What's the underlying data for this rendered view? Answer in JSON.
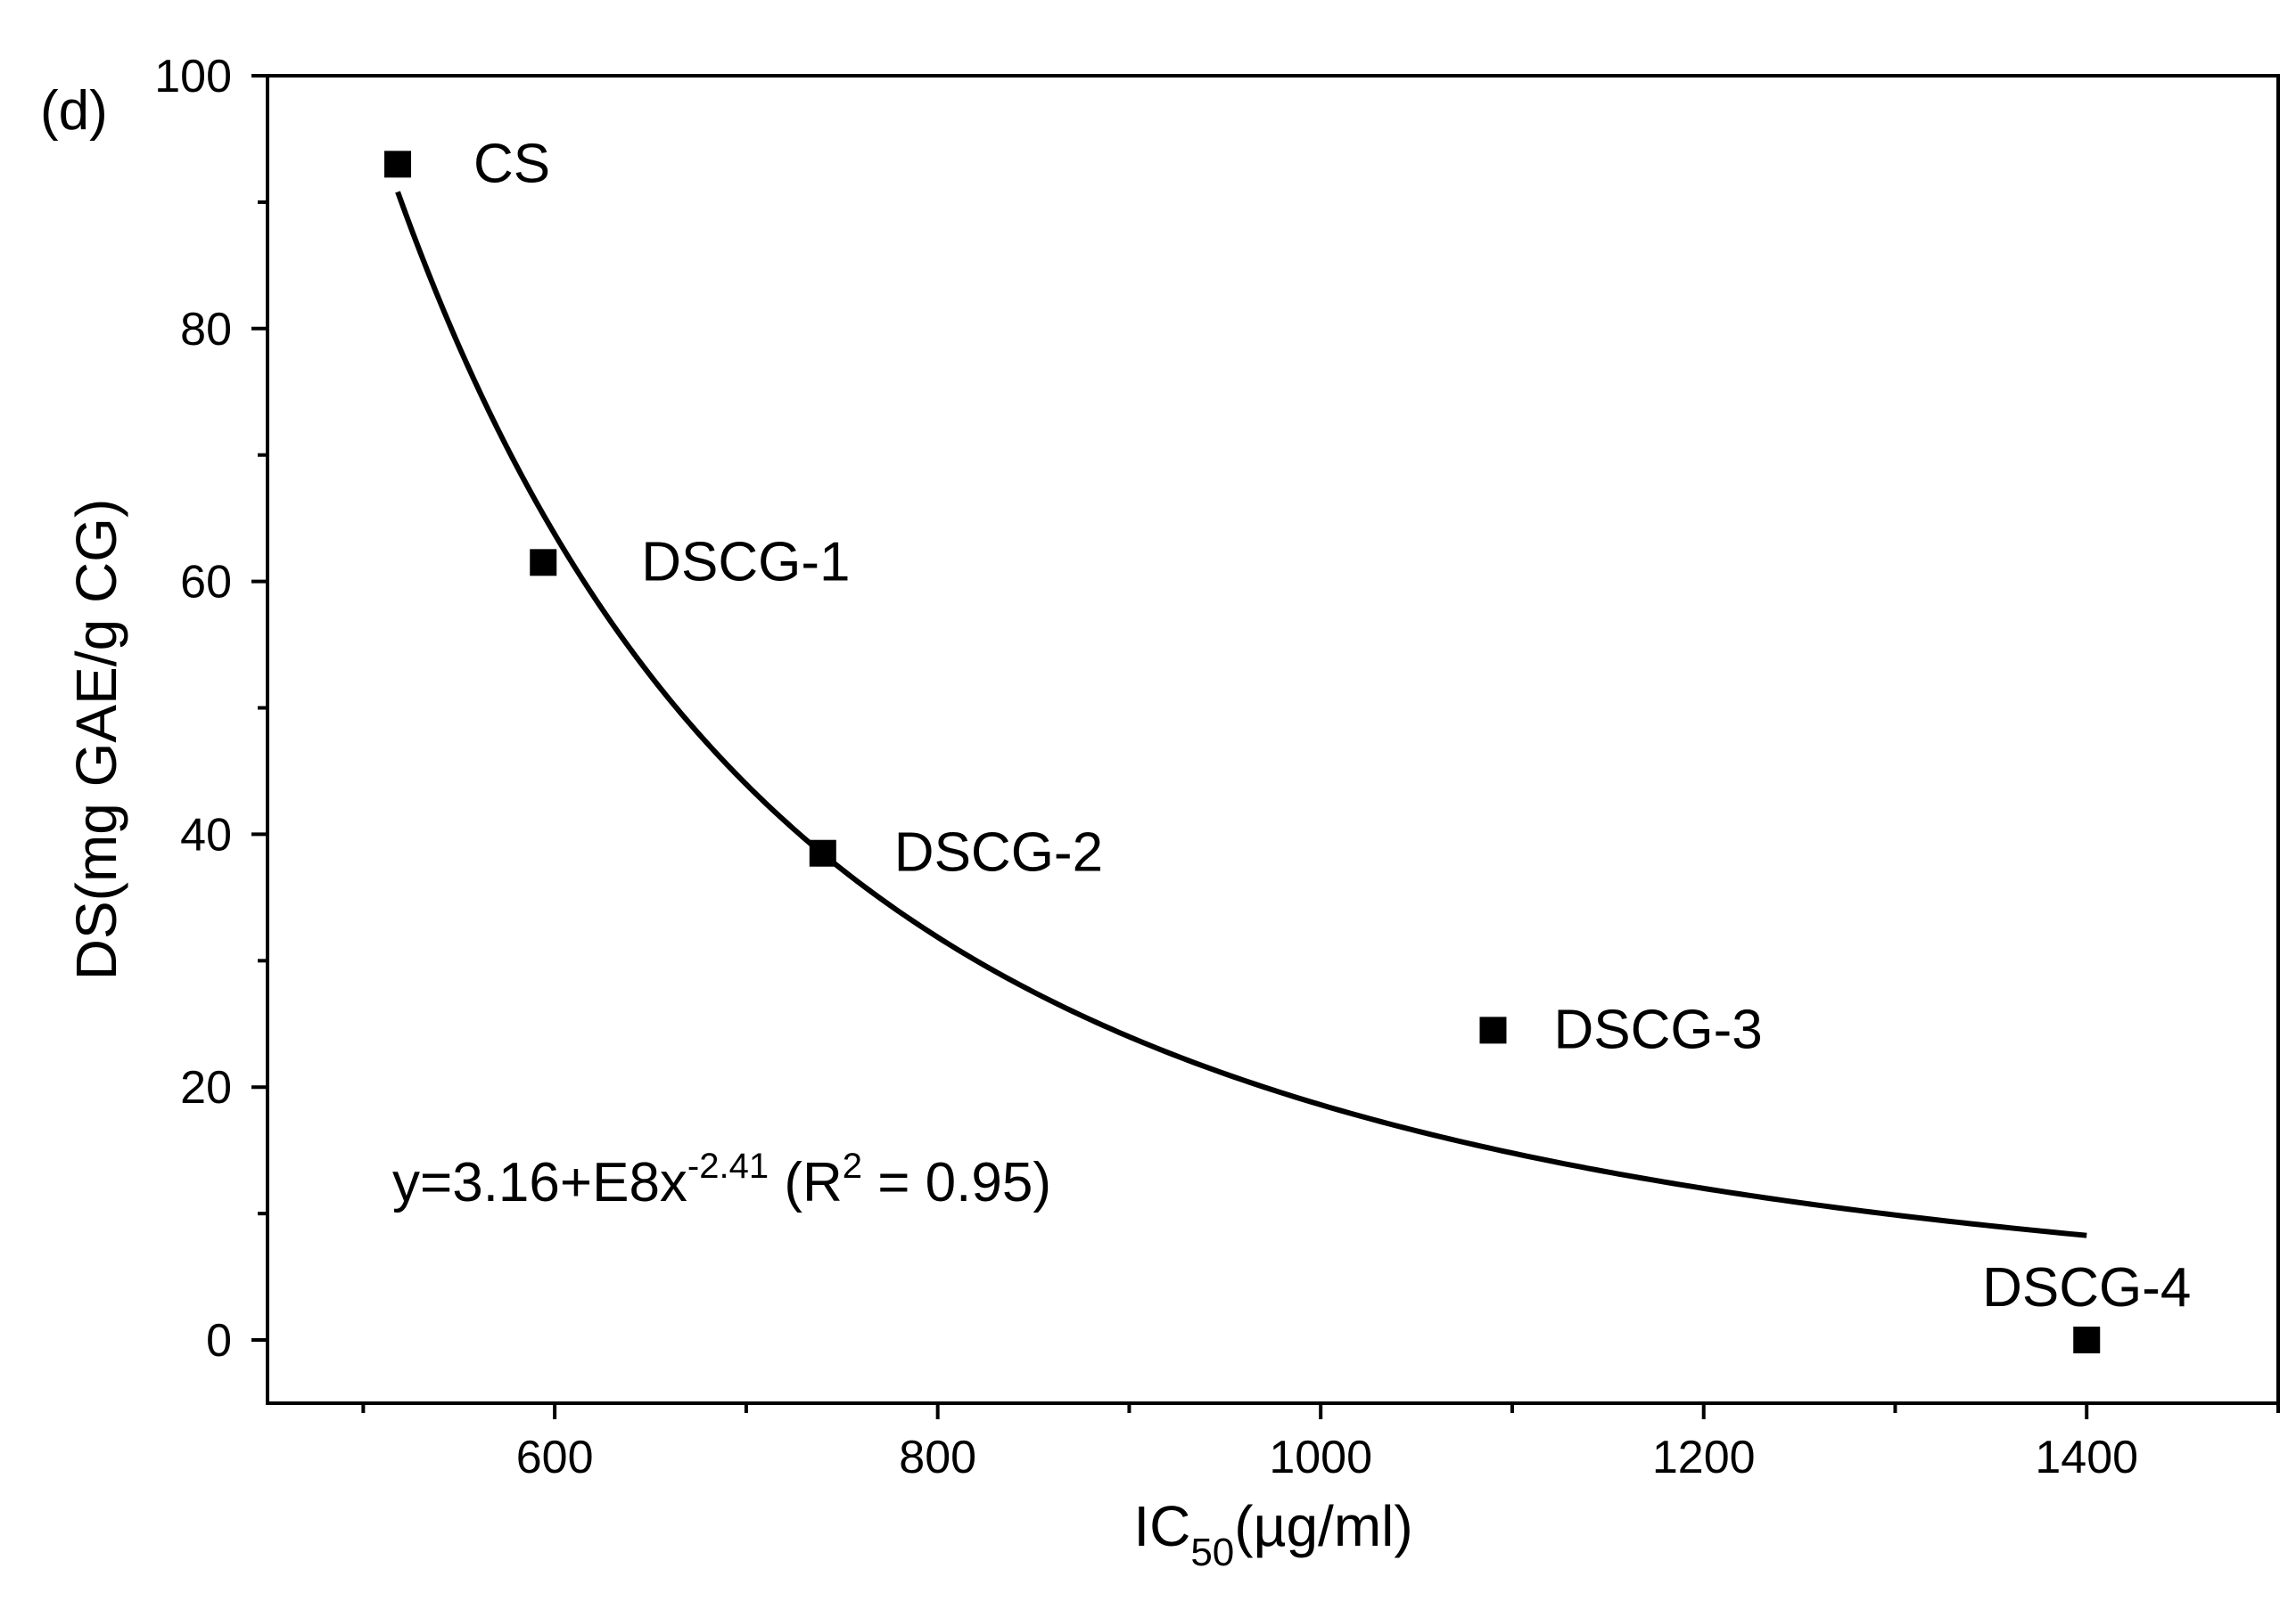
{
  "chart_data": {
    "type": "scatter",
    "panel_label": "(d)",
    "xlabel": {
      "main": "IC",
      "sub": "50",
      "rest": "(µg/ml)"
    },
    "ylabel": "DS(mg GAE/g CG)",
    "xlim": [
      450,
      1500
    ],
    "ylim": [
      -5,
      100
    ],
    "x_ticks": [
      600,
      800,
      1000,
      1200,
      1400
    ],
    "x_tick_labels": [
      "600",
      "800",
      "1000",
      "1200",
      "1400"
    ],
    "x_minor_ticks": [
      500,
      700,
      900,
      1100,
      1300,
      1500
    ],
    "y_ticks": [
      0,
      20,
      40,
      60,
      80,
      100
    ],
    "y_tick_labels": [
      "0",
      "20",
      "40",
      "60",
      "80",
      "100"
    ],
    "y_minor_ticks": [
      10,
      30,
      50,
      70,
      90
    ],
    "grid": false,
    "points": [
      {
        "label": "CS",
        "x": 518,
        "y": 93
      },
      {
        "label": "DSCG-1",
        "x": 594,
        "y": 61.5
      },
      {
        "label": "DSCG-2",
        "x": 740,
        "y": 38.5
      },
      {
        "label": "DSCG-3",
        "x": 1090,
        "y": 24.5
      },
      {
        "label": "DSCG-4",
        "x": 1400,
        "y": 0
      }
    ],
    "fit": {
      "equation_parts": [
        "y=3.16+E8x",
        "-2.41",
        " (R",
        "2",
        " = 0.95)"
      ],
      "x_range": [
        518,
        1400
      ],
      "a": 316000000,
      "b": -2.41
    },
    "marker_color": "#000000",
    "line_color": "#000000"
  }
}
